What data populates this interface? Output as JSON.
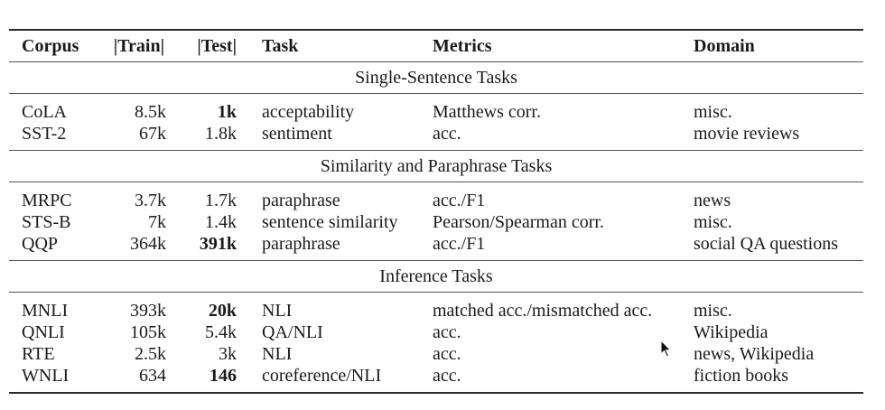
{
  "table": {
    "headers": {
      "corpus": "Corpus",
      "train": "|Train|",
      "test": "|Test|",
      "task": "Task",
      "metrics": "Metrics",
      "domain": "Domain"
    },
    "sections": [
      {
        "title": "Single-Sentence Tasks",
        "rows": [
          {
            "corpus": "CoLA",
            "train": "8.5k",
            "test": "1k",
            "test_bold": true,
            "task": "acceptability",
            "metrics": "Matthews corr.",
            "domain": "misc."
          },
          {
            "corpus": "SST-2",
            "train": "67k",
            "test": "1.8k",
            "test_bold": false,
            "task": "sentiment",
            "metrics": "acc.",
            "domain": "movie reviews"
          }
        ]
      },
      {
        "title": "Similarity and Paraphrase Tasks",
        "rows": [
          {
            "corpus": "MRPC",
            "train": "3.7k",
            "test": "1.7k",
            "test_bold": false,
            "task": "paraphrase",
            "metrics": "acc./F1",
            "domain": "news"
          },
          {
            "corpus": "STS-B",
            "train": "7k",
            "test": "1.4k",
            "test_bold": false,
            "task": "sentence similarity",
            "metrics": "Pearson/Spearman corr.",
            "domain": "misc."
          },
          {
            "corpus": "QQP",
            "train": "364k",
            "test": "391k",
            "test_bold": true,
            "task": "paraphrase",
            "metrics": "acc./F1",
            "domain": "social QA questions"
          }
        ]
      },
      {
        "title": "Inference Tasks",
        "rows": [
          {
            "corpus": "MNLI",
            "train": "393k",
            "test": "20k",
            "test_bold": true,
            "task": "NLI",
            "metrics": "matched acc./mismatched acc.",
            "domain": "misc."
          },
          {
            "corpus": "QNLI",
            "train": "105k",
            "test": "5.4k",
            "test_bold": false,
            "task": "QA/NLI",
            "metrics": "acc.",
            "domain": "Wikipedia"
          },
          {
            "corpus": "RTE",
            "train": "2.5k",
            "test": "3k",
            "test_bold": false,
            "task": "NLI",
            "metrics": "acc.",
            "domain": "news, Wikipedia"
          },
          {
            "corpus": "WNLI",
            "train": "634",
            "test": "146",
            "test_bold": true,
            "task": "coreference/NLI",
            "metrics": "acc.",
            "domain": "fiction books"
          }
        ]
      }
    ]
  },
  "cursor_icon": "mouse-pointer-icon"
}
